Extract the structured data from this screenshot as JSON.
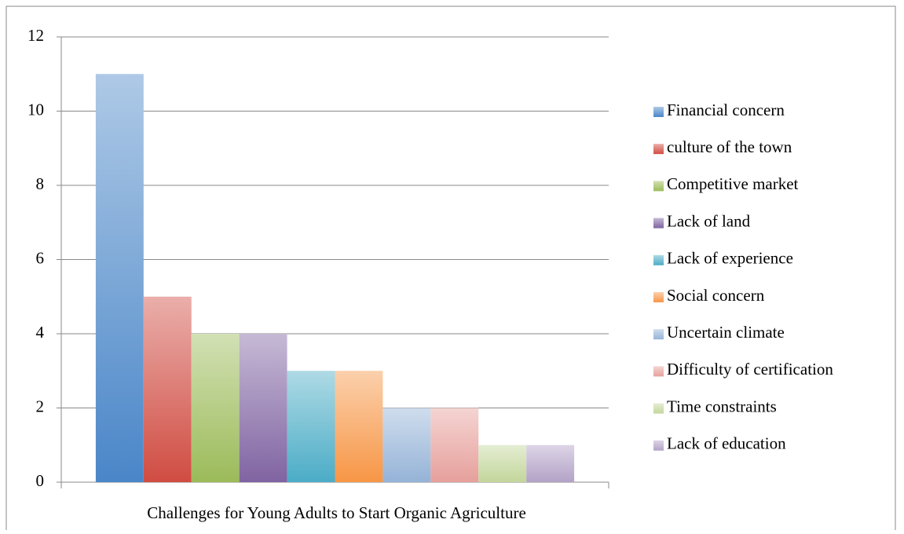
{
  "chart_data": {
    "type": "bar",
    "categories": [
      "Challenges for Young Adults to Start Organic Agriculture"
    ],
    "series": [
      {
        "name": "Financial concern",
        "color": "#4a86c8",
        "values": [
          11
        ]
      },
      {
        "name": "culture of the town",
        "color": "#d04c42",
        "values": [
          5
        ]
      },
      {
        "name": "Competitive market",
        "color": "#9bbb59",
        "values": [
          4
        ]
      },
      {
        "name": "Lack of land",
        "color": "#8064a2",
        "values": [
          4
        ]
      },
      {
        "name": "Lack of experience",
        "color": "#4bacc6",
        "values": [
          3
        ]
      },
      {
        "name": "Social concern",
        "color": "#f79646",
        "values": [
          3
        ]
      },
      {
        "name": "Uncertain climate",
        "color": "#95b3d7",
        "values": [
          2
        ]
      },
      {
        "name": "Difficulty of certification",
        "color": "#e6a09c",
        "values": [
          2
        ]
      },
      {
        "name": "Time constraints",
        "color": "#c3d69b",
        "values": [
          1
        ]
      },
      {
        "name": "Lack of education",
        "color": "#b3a2c7",
        "values": [
          1
        ]
      }
    ],
    "ylim": [
      0,
      12
    ],
    "yticks": [
      0,
      2,
      4,
      6,
      8,
      10,
      12
    ],
    "grid": true,
    "legend": "right"
  }
}
